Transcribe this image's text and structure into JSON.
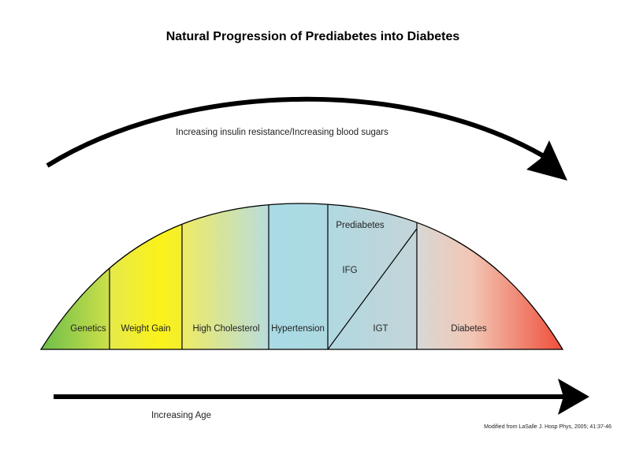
{
  "title": "Natural Progression of Prediabetes into Diabetes",
  "top_arrow_label": "Increasing insulin resistance/Increasing blood sugars",
  "bottom_arrow_label": "Increasing Age",
  "stages": {
    "genetics": "Genetics",
    "weight_gain": "Weight Gain",
    "high_cholesterol": "High Cholesterol",
    "hypertension": "Hypertension",
    "prediabetes": "Prediabetes",
    "ifg": "IFG",
    "igt": "IGT",
    "diabetes": "Diabetes"
  },
  "citation": "Modified from LaSalle J. Hosp Phys, 2005; 41:37-46",
  "colors": {
    "genetics": "#6cbf4c",
    "weight_gain": "#f8ee1c",
    "high_cholesterol": "#e9e87c",
    "hypertension": "#a9dbe4",
    "prediabetes": "#b5d6de",
    "diabetes_start": "#d6d6d6",
    "diabetes_end": "#ee4a33",
    "line": "#000000"
  }
}
